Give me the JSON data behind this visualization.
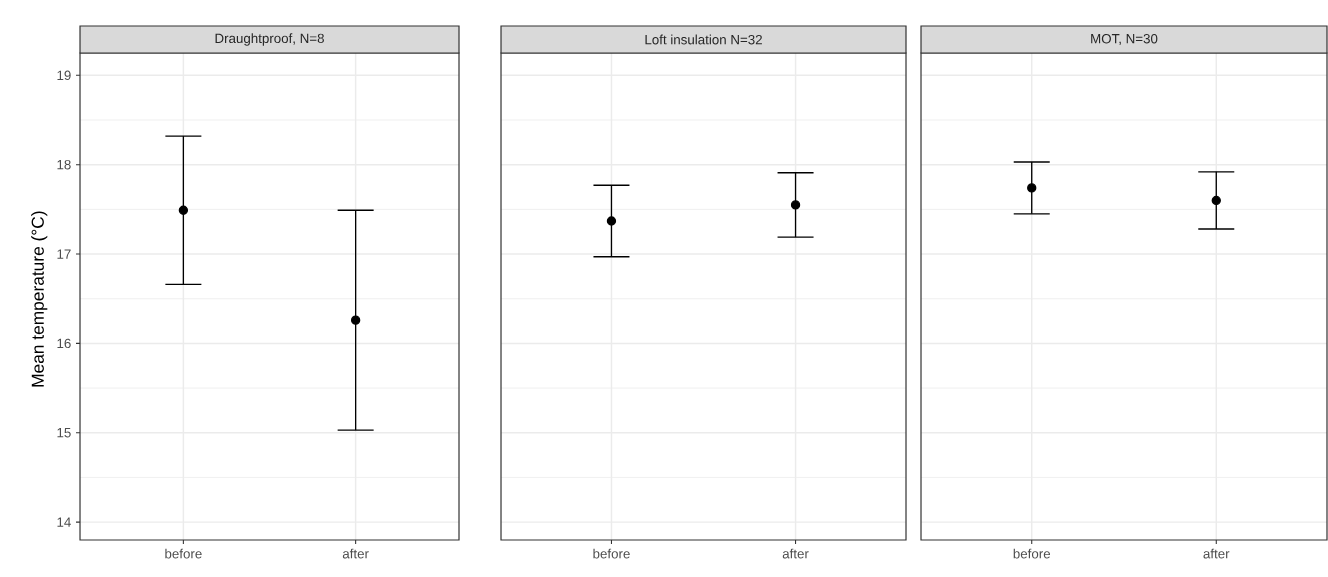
{
  "chart_data": [
    {
      "type": "scatter",
      "title": "Draughtproof, N=8",
      "ylabel": "Mean temperature (°C)",
      "categories": [
        "before",
        "after"
      ],
      "values": [
        17.49,
        16.26
      ],
      "errors": [
        0.83,
        1.23
      ],
      "color": "#000000",
      "marker": "circle",
      "ylim": [
        13.8,
        19.25
      ],
      "yticks": [
        14,
        15,
        16,
        17,
        18,
        19
      ],
      "grid": true
    },
    {
      "type": "scatter",
      "title": "Loft insulation N=32",
      "categories": [
        "before",
        "after"
      ],
      "values": [
        17.37,
        17.55
      ],
      "errors": [
        0.4,
        0.36
      ],
      "color": "#000000",
      "marker": "circle",
      "ylim": [
        13.8,
        19.25
      ],
      "yticks": [
        14,
        15,
        16,
        17,
        18,
        19
      ],
      "grid": true,
      "tick_labels": "x"
    },
    {
      "type": "scatter",
      "title": "MOT, N=30",
      "categories": [
        "before",
        "after"
      ],
      "values": [
        17.74,
        17.6
      ],
      "errors": [
        0.29,
        0.32
      ],
      "color": "#000000",
      "marker": "circle",
      "ylim": [
        13.8,
        19.25
      ],
      "yticks": [
        14,
        15,
        16,
        17,
        18,
        19
      ],
      "grid": true,
      "tick_labels": "x"
    }
  ]
}
